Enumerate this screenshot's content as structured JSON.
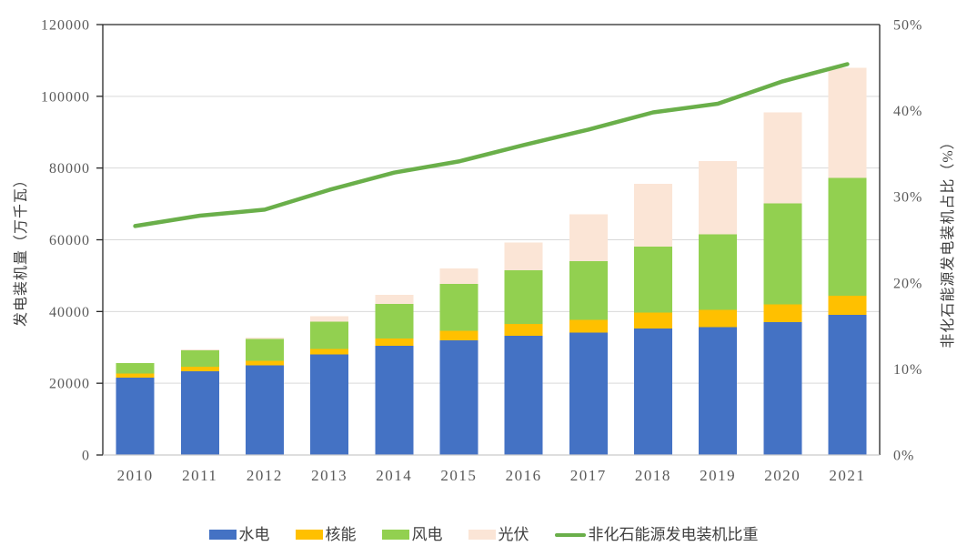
{
  "chart_data": {
    "type": "bar",
    "subtype": "stacked-bars-with-right-axis-line",
    "categories": [
      "2010",
      "2011",
      "2012",
      "2013",
      "2014",
      "2015",
      "2016",
      "2017",
      "2018",
      "2019",
      "2020",
      "2021"
    ],
    "series": [
      {
        "name": "水电",
        "type": "bar",
        "color": "#4472C4",
        "values": [
          21606,
          23298,
          24947,
          28044,
          30486,
          31954,
          33211,
          34119,
          35226,
          35640,
          37016,
          39092
        ]
      },
      {
        "name": "核能",
        "type": "bar",
        "color": "#FFC000",
        "values": [
          1082,
          1257,
          1257,
          1466,
          1988,
          2717,
          3364,
          3582,
          4466,
          4874,
          4989,
          5326
        ]
      },
      {
        "name": "风电",
        "type": "bar",
        "color": "#92D050",
        "values": [
          2958,
          4623,
          6142,
          7652,
          9581,
          13075,
          14864,
          16367,
          18426,
          21005,
          28153,
          32848
        ]
      },
      {
        "name": "光伏",
        "type": "bar",
        "color": "#FBE5D6",
        "values": [
          26,
          212,
          341,
          1589,
          2652,
          4318,
          7742,
          13025,
          17446,
          20468,
          25343,
          30656
        ]
      },
      {
        "name": "非化石能源发电装机比重",
        "type": "line",
        "axis": "right",
        "color": "#6AAF4A",
        "values": [
          26.6,
          27.8,
          28.5,
          30.8,
          32.8,
          34.1,
          36.0,
          37.8,
          39.8,
          40.8,
          43.4,
          45.4
        ]
      }
    ],
    "ylabel_left": "发电装机量（万千瓦）",
    "ylabel_right": "非化石能源发电装机占比（%）",
    "y_left_axis": {
      "min": 0,
      "max": 120000,
      "step": 20000,
      "tick_labels": [
        "0",
        "20000",
        "40000",
        "60000",
        "80000",
        "100000",
        "120000"
      ]
    },
    "y_right_axis": {
      "min": 0,
      "max": 50,
      "step": 10,
      "suffix": "%",
      "tick_labels": [
        "0%",
        "10%",
        "20%",
        "30%",
        "40%",
        "50%"
      ]
    },
    "grid": true,
    "legend_position": "bottom",
    "colors": {
      "tick_label": "#595959",
      "axis_title": "#3f3f3f",
      "gridline": "#D9D9D9",
      "frame_dark": "#262626",
      "frame_bottom": "#C9C9C9",
      "background": "#FFFFFF"
    }
  }
}
